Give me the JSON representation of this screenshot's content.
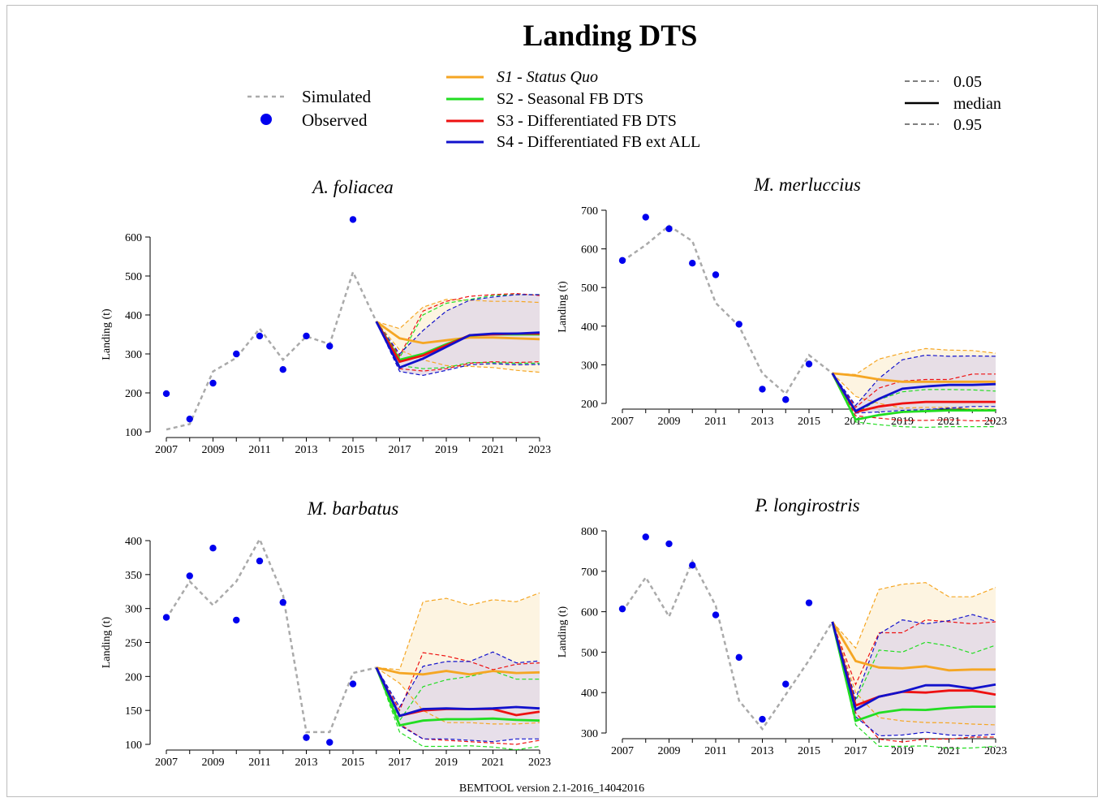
{
  "title": "Landing DTS",
  "footer": "BEMTOOL version 2.1-2016_14042016",
  "colors": {
    "simulated": "#aaaaaa",
    "observed": "#0000ee",
    "S1": "#f5a623",
    "S2": "#22dd22",
    "S3": "#ee1111",
    "S4": "#1111cc",
    "band_s1": "#fdf2dc",
    "band_s4": "#e3d9e6"
  },
  "legend": {
    "simulated_label": "Simulated",
    "observed_label": "Observed",
    "scenarios": [
      {
        "key": "S1",
        "label": "S1 - Status Quo",
        "italic": true
      },
      {
        "key": "S2",
        "label": "S2 - Seasonal FB DTS",
        "italic": false
      },
      {
        "key": "S3",
        "label": "S3 - Differentiated FB DTS",
        "italic": false
      },
      {
        "key": "S4",
        "label": "S4 - Differentiated FB ext ALL",
        "italic": false
      }
    ],
    "quantiles": [
      {
        "label": "0.05",
        "style": "dashed"
      },
      {
        "label": "median",
        "style": "solid"
      },
      {
        "label": "0.95",
        "style": "dashed"
      }
    ]
  },
  "chart_data": [
    {
      "type": "line",
      "title": "A. foliacea",
      "ylabel": "Landing (t)",
      "xlabel": "",
      "ylim": [
        100,
        600
      ],
      "yticks": [
        100,
        200,
        300,
        400,
        500,
        600
      ],
      "xlim": [
        2007,
        2023
      ],
      "xticks": [
        2007,
        2009,
        2011,
        2013,
        2015,
        2017,
        2019,
        2021,
        2023
      ],
      "observed": {
        "x": [
          2007,
          2008,
          2009,
          2010,
          2011,
          2012,
          2013,
          2014,
          2015
        ],
        "y": [
          198,
          133,
          225,
          300,
          346,
          260,
          346,
          320,
          645
        ]
      },
      "simulated": {
        "x": [
          2007,
          2008,
          2009,
          2010,
          2011,
          2012,
          2013,
          2014,
          2015,
          2016
        ],
        "y": [
          106,
          120,
          255,
          290,
          365,
          285,
          345,
          325,
          510,
          383
        ]
      },
      "series": [
        {
          "name": "S1 - Status Quo",
          "key": "S1",
          "x": [
            2016,
            2017,
            2018,
            2019,
            2020,
            2021,
            2022,
            2023
          ],
          "median": [
            383,
            340,
            328,
            335,
            342,
            342,
            340,
            338
          ],
          "q05": [
            383,
            310,
            285,
            270,
            268,
            265,
            258,
            253
          ],
          "q95": [
            383,
            365,
            420,
            440,
            438,
            435,
            435,
            432
          ]
        },
        {
          "name": "S2 - Seasonal FB DTS",
          "key": "S2",
          "x": [
            2016,
            2017,
            2018,
            2019,
            2020,
            2021,
            2022,
            2023
          ],
          "median": [
            383,
            285,
            300,
            325,
            347,
            350,
            350,
            350
          ],
          "q05": [
            383,
            270,
            262,
            265,
            278,
            278,
            276,
            276
          ],
          "q95": [
            383,
            290,
            400,
            430,
            440,
            450,
            452,
            452
          ]
        },
        {
          "name": "S3 - Differentiated FB DTS",
          "key": "S3",
          "x": [
            2016,
            2017,
            2018,
            2019,
            2020,
            2021,
            2022,
            2023
          ],
          "median": [
            383,
            280,
            296,
            322,
            348,
            350,
            352,
            352
          ],
          "q05": [
            383,
            262,
            256,
            262,
            276,
            280,
            278,
            280
          ],
          "q95": [
            383,
            295,
            410,
            435,
            448,
            452,
            455,
            450
          ]
        },
        {
          "name": "S4 - Differentiated FB ext ALL",
          "key": "S4",
          "x": [
            2016,
            2017,
            2018,
            2019,
            2020,
            2021,
            2022,
            2023
          ],
          "median": [
            383,
            265,
            288,
            318,
            348,
            352,
            352,
            355
          ],
          "q05": [
            383,
            255,
            245,
            258,
            272,
            275,
            272,
            273
          ],
          "q95": [
            383,
            300,
            360,
            410,
            438,
            446,
            452,
            452
          ]
        }
      ]
    },
    {
      "type": "line",
      "title": "M. merluccius",
      "ylabel": "Landing (t)",
      "xlabel": "",
      "ylim": [
        200,
        700
      ],
      "yticks": [
        200,
        300,
        400,
        500,
        600,
        700
      ],
      "xlim": [
        2007,
        2023
      ],
      "xticks": [
        2007,
        2009,
        2011,
        2013,
        2015,
        2017,
        2019,
        2021,
        2023
      ],
      "observed": {
        "x": [
          2007,
          2008,
          2009,
          2010,
          2011,
          2012,
          2013,
          2014,
          2015
        ],
        "y": [
          570,
          682,
          652,
          563,
          533,
          405,
          237,
          210,
          302
        ]
      },
      "simulated": {
        "x": [
          2007,
          2008,
          2009,
          2010,
          2011,
          2012,
          2013,
          2014,
          2015,
          2016
        ],
        "y": [
          568,
          610,
          660,
          620,
          460,
          400,
          278,
          225,
          325,
          278
        ]
      },
      "series": [
        {
          "name": "S1 - Status Quo",
          "key": "S1",
          "x": [
            2016,
            2017,
            2018,
            2019,
            2020,
            2021,
            2022,
            2023
          ],
          "median": [
            278,
            272,
            262,
            256,
            256,
            256,
            256,
            256
          ],
          "q05": [
            278,
            218,
            200,
            188,
            190,
            190,
            185,
            185
          ],
          "q95": [
            278,
            275,
            315,
            330,
            342,
            338,
            337,
            330
          ]
        },
        {
          "name": "S2 - Seasonal FB DTS",
          "key": "S2",
          "x": [
            2016,
            2017,
            2018,
            2019,
            2020,
            2021,
            2022,
            2023
          ],
          "median": [
            278,
            158,
            170,
            178,
            180,
            182,
            182,
            182
          ],
          "q05": [
            278,
            152,
            145,
            140,
            138,
            140,
            140,
            140
          ],
          "q95": [
            278,
            175,
            210,
            230,
            236,
            236,
            235,
            232
          ]
        },
        {
          "name": "S3 - Differentiated FB DTS",
          "key": "S3",
          "x": [
            2016,
            2017,
            2018,
            2019,
            2020,
            2021,
            2022,
            2023
          ],
          "median": [
            278,
            178,
            192,
            200,
            204,
            204,
            204,
            204
          ],
          "q05": [
            278,
            168,
            162,
            156,
            156,
            158,
            155,
            155
          ],
          "q95": [
            278,
            190,
            240,
            258,
            262,
            262,
            276,
            276
          ]
        },
        {
          "name": "S4 - Differentiated FB ext ALL",
          "key": "S4",
          "x": [
            2016,
            2017,
            2018,
            2019,
            2020,
            2021,
            2022,
            2023
          ],
          "median": [
            278,
            180,
            212,
            238,
            244,
            248,
            248,
            250
          ],
          "q05": [
            278,
            175,
            178,
            182,
            184,
            188,
            192,
            192
          ],
          "q95": [
            278,
            195,
            265,
            313,
            325,
            322,
            323,
            322
          ]
        }
      ]
    },
    {
      "type": "line",
      "title": "M. barbatus",
      "ylabel": "Landing (t)",
      "xlabel": "",
      "ylim": [
        100,
        400
      ],
      "yticks": [
        100,
        150,
        200,
        250,
        300,
        350,
        400
      ],
      "xlim": [
        2007,
        2023
      ],
      "xticks": [
        2007,
        2009,
        2011,
        2013,
        2015,
        2017,
        2019,
        2021,
        2023
      ],
      "observed": {
        "x": [
          2007,
          2008,
          2009,
          2010,
          2011,
          2012,
          2013,
          2014,
          2015
        ],
        "y": [
          287,
          348,
          389,
          283,
          370,
          309,
          110,
          103,
          189
        ]
      },
      "simulated": {
        "x": [
          2007,
          2008,
          2009,
          2010,
          2011,
          2012,
          2013,
          2014,
          2015,
          2016
        ],
        "y": [
          285,
          340,
          305,
          340,
          402,
          320,
          118,
          118,
          205,
          213
        ]
      },
      "series": [
        {
          "name": "S1 - Status Quo",
          "key": "S1",
          "x": [
            2016,
            2017,
            2018,
            2019,
            2020,
            2021,
            2022,
            2023
          ],
          "median": [
            213,
            205,
            203,
            208,
            203,
            208,
            205,
            206
          ],
          "q05": [
            213,
            190,
            150,
            132,
            132,
            130,
            130,
            132
          ],
          "q95": [
            213,
            210,
            310,
            315,
            305,
            313,
            310,
            323
          ]
        },
        {
          "name": "S2 - Seasonal FB DTS",
          "key": "S2",
          "x": [
            2016,
            2017,
            2018,
            2019,
            2020,
            2021,
            2022,
            2023
          ],
          "median": [
            213,
            128,
            135,
            137,
            137,
            138,
            136,
            135
          ],
          "q05": [
            213,
            118,
            97,
            97,
            98,
            96,
            92,
            97
          ],
          "q95": [
            213,
            135,
            185,
            195,
            200,
            208,
            196,
            196
          ]
        },
        {
          "name": "S3 - Differentiated FB DTS",
          "key": "S3",
          "x": [
            2016,
            2017,
            2018,
            2019,
            2020,
            2021,
            2022,
            2023
          ],
          "median": [
            213,
            142,
            150,
            152,
            152,
            152,
            143,
            148
          ],
          "q05": [
            213,
            130,
            108,
            106,
            104,
            102,
            100,
            106
          ],
          "q95": [
            213,
            150,
            235,
            230,
            222,
            210,
            218,
            220
          ]
        },
        {
          "name": "S4 - Differentiated FB ext ALL",
          "key": "S4",
          "x": [
            2016,
            2017,
            2018,
            2019,
            2020,
            2021,
            2022,
            2023
          ],
          "median": [
            213,
            142,
            152,
            153,
            152,
            153,
            155,
            153
          ],
          "q05": [
            213,
            128,
            108,
            108,
            106,
            104,
            108,
            108
          ],
          "q95": [
            213,
            155,
            215,
            222,
            222,
            236,
            220,
            223
          ]
        }
      ]
    },
    {
      "type": "line",
      "title": "P. longirostris",
      "ylabel": "Landing (t)",
      "xlabel": "",
      "ylim": [
        300,
        800
      ],
      "yticks": [
        300,
        400,
        500,
        600,
        700,
        800
      ],
      "xlim": [
        2007,
        2023
      ],
      "xticks": [
        2007,
        2009,
        2011,
        2013,
        2015,
        2017,
        2019,
        2021,
        2023
      ],
      "observed": {
        "x": [
          2007,
          2008,
          2009,
          2010,
          2011,
          2012,
          2013,
          2014,
          2015
        ],
        "y": [
          607,
          785,
          768,
          715,
          592,
          487,
          334,
          421,
          622
        ]
      },
      "simulated": {
        "x": [
          2007,
          2008,
          2009,
          2010,
          2011,
          2012,
          2013,
          2014,
          2015,
          2016
        ],
        "y": [
          600,
          685,
          588,
          725,
          615,
          380,
          310,
          395,
          480,
          575
        ]
      },
      "series": [
        {
          "name": "S1 - Status Quo",
          "key": "S1",
          "x": [
            2016,
            2017,
            2018,
            2019,
            2020,
            2021,
            2022,
            2023
          ],
          "median": [
            575,
            478,
            462,
            460,
            465,
            455,
            457,
            457
          ],
          "q05": [
            575,
            400,
            338,
            330,
            326,
            325,
            322,
            320
          ],
          "q95": [
            575,
            510,
            655,
            668,
            672,
            637,
            637,
            660
          ]
        },
        {
          "name": "S2 - Seasonal FB DTS",
          "key": "S2",
          "x": [
            2016,
            2017,
            2018,
            2019,
            2020,
            2021,
            2022,
            2023
          ],
          "median": [
            575,
            330,
            350,
            358,
            357,
            362,
            365,
            365
          ],
          "q05": [
            575,
            320,
            267,
            267,
            268,
            262,
            263,
            267
          ],
          "q95": [
            575,
            380,
            505,
            500,
            525,
            515,
            497,
            517
          ]
        },
        {
          "name": "S3 - Differentiated FB DTS",
          "key": "S3",
          "x": [
            2016,
            2017,
            2018,
            2019,
            2020,
            2021,
            2022,
            2023
          ],
          "median": [
            575,
            368,
            390,
            402,
            400,
            405,
            405,
            395
          ],
          "q05": [
            575,
            350,
            285,
            278,
            285,
            285,
            290,
            290
          ],
          "q95": [
            575,
            420,
            548,
            548,
            580,
            575,
            570,
            575
          ]
        },
        {
          "name": "S4 - Differentiated FB ext ALL",
          "key": "S4",
          "x": [
            2016,
            2017,
            2018,
            2019,
            2020,
            2021,
            2022,
            2023
          ],
          "median": [
            575,
            358,
            390,
            402,
            418,
            418,
            410,
            420
          ],
          "q05": [
            575,
            340,
            293,
            295,
            302,
            295,
            293,
            297
          ],
          "q95": [
            575,
            385,
            545,
            580,
            570,
            578,
            593,
            577
          ]
        }
      ]
    }
  ]
}
